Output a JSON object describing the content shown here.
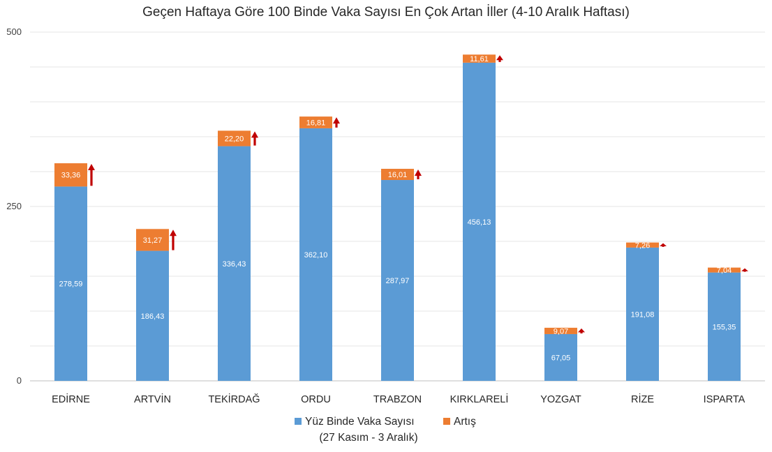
{
  "chart_data": {
    "type": "bar",
    "stacked": true,
    "title": "Geçen Haftaya Göre 100 Binde Vaka Sayısı En Çok Artan İller (4-10 Aralık Haftası)",
    "categories": [
      "EDİRNE",
      "ARTVİN",
      "TEKİRDAĞ",
      "ORDU",
      "TRABZON",
      "KIRKLARELİ",
      "YOZGAT",
      "RİZE",
      "ISPARTA"
    ],
    "series": [
      {
        "name": "Yüz Binde Vaka Sayısı (27 Kasım - 3 Aralık)",
        "legend_lines": [
          "Yüz Binde Vaka Sayısı",
          "(27 Kasım - 3 Aralık)"
        ],
        "color": "#5B9BD5",
        "values": [
          278.59,
          186.43,
          336.43,
          362.1,
          287.97,
          456.13,
          67.05,
          191.08,
          155.35
        ],
        "labels": [
          "278,59",
          "186,43",
          "336,43",
          "362,10",
          "287,97",
          "456,13",
          "67,05",
          "191,08",
          "155,35"
        ]
      },
      {
        "name": "Artış",
        "legend_lines": [
          "Artış"
        ],
        "color": "#ED7D31",
        "values": [
          33.36,
          31.27,
          22.2,
          16.81,
          16.01,
          11.61,
          9.07,
          7.26,
          7.04
        ],
        "labels": [
          "33,36",
          "31,27",
          "22,20",
          "16,81",
          "16,01",
          "11,61",
          "9,07",
          "7,26",
          "7,04"
        ]
      }
    ],
    "arrow_color": "#C00000",
    "arrow_icon": "up-arrow-icon",
    "ylim": [
      0,
      500
    ],
    "yticks": [
      "0",
      "250",
      "500"
    ],
    "grid": true,
    "legend_position": "bottom"
  }
}
